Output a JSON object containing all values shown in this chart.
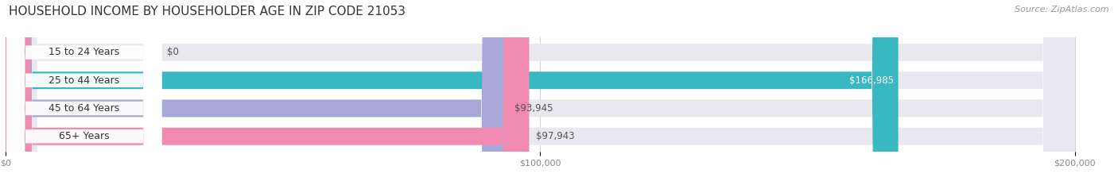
{
  "title": "HOUSEHOLD INCOME BY HOUSEHOLDER AGE IN ZIP CODE 21053",
  "source": "Source: ZipAtlas.com",
  "categories": [
    "15 to 24 Years",
    "25 to 44 Years",
    "45 to 64 Years",
    "65+ Years"
  ],
  "values": [
    0,
    166985,
    93945,
    97943
  ],
  "labels": [
    "$0",
    "$166,985",
    "$93,945",
    "$97,943"
  ],
  "bar_colors": [
    "#d4a8cc",
    "#3ab8c2",
    "#a8a8d8",
    "#f08ab0"
  ],
  "track_color": "#e8e8ee",
  "bg_color": "#ffffff",
  "xmax": 200000,
  "xtick_labels": [
    "$0",
    "$100,000",
    "$200,000"
  ],
  "title_fontsize": 11,
  "source_fontsize": 8,
  "label_fontsize": 8.5,
  "cat_fontsize": 9,
  "bar_height": 0.62,
  "bar_label_color_inside": "#ffffff",
  "bar_label_color_outside": "#555555",
  "pill_bg": "#ffffff",
  "pill_text_color": "#333333",
  "grid_color": "#d0d0d8",
  "tick_color": "#888888"
}
